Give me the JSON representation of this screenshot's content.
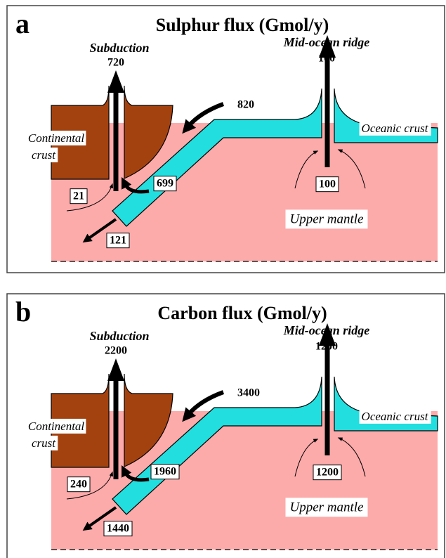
{
  "panels": [
    {
      "letter": "a",
      "title": "Sulphur flux (Gmol/y)",
      "subduction_label": "Subduction",
      "subduction_flux": 720,
      "ridge_label": "Mid-ocean ridge",
      "ridge_flux": 100,
      "trench_input": 820,
      "slab_to_wedge": 699,
      "wedge_input": 21,
      "slab_to_mantle": 121,
      "mantle_to_ridge": 100,
      "continental_crust": [
        "Continental",
        "crust"
      ],
      "oceanic_crust": "Oceanic crust",
      "upper_mantle": "Upper mantle"
    },
    {
      "letter": "b",
      "title": "Carbon flux (Gmol/y)",
      "subduction_label": "Subduction",
      "subduction_flux": 2200,
      "ridge_label": "Mid-ocean ridge",
      "ridge_flux": 1200,
      "trench_input": 3400,
      "slab_to_wedge": 1960,
      "wedge_input": 240,
      "slab_to_mantle": 1440,
      "mantle_to_ridge": 1200,
      "continental_crust": [
        "Continental",
        "crust"
      ],
      "oceanic_crust": "Oceanic crust",
      "upper_mantle": "Upper mantle"
    }
  ]
}
